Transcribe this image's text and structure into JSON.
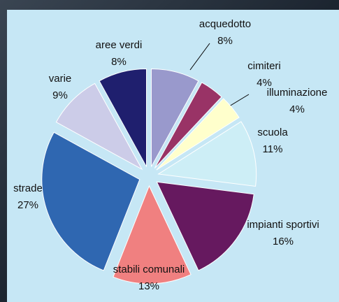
{
  "chart_data": {
    "type": "pie",
    "categories": [
      "acquedotto",
      "cimiteri",
      "illuminazione",
      "scuola",
      "impianti sportivi",
      "stabili comunali",
      "strade",
      "varie",
      "aree verdi"
    ],
    "values": [
      8,
      4,
      4,
      11,
      16,
      13,
      27,
      9,
      8
    ],
    "value_labels": [
      "8%",
      "4%",
      "4%",
      "11%",
      "16%",
      "13%",
      "27%",
      "9%",
      "8%"
    ],
    "colors": [
      "#9999cc",
      "#993366",
      "#ffffcc",
      "#cdeef6",
      "#66195f",
      "#f08080",
      "#2f67b1",
      "#cccce8",
      "#1f1f6e"
    ]
  }
}
